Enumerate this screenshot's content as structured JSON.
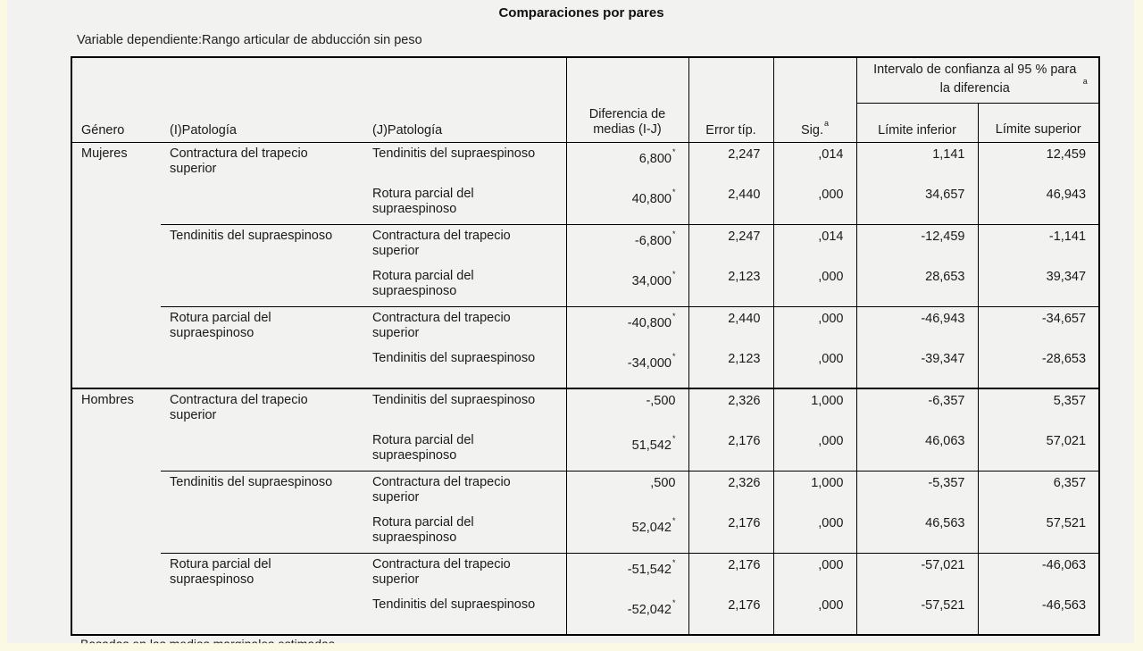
{
  "title": "Comparaciones por pares",
  "subtitle": "Variable dependiente:Rango articular de abducción sin peso",
  "headers": {
    "genero": "Género",
    "i_patologia": "(I)Patología",
    "j_patologia": "(J)Patología",
    "diferencia": "Diferencia de medias (I-J)",
    "error": "Error típ.",
    "sig": "Sig.",
    "sig_sup": "a",
    "intervalo": "Intervalo de confianza al 95 % para la diferencia",
    "intervalo_sup": "a",
    "limite_inferior": "Límite inferior",
    "limite_superior": "Límite superior"
  },
  "footnote_cut": "Basadas en las medias marginales estimadas",
  "groups": [
    {
      "genero": "Mujeres",
      "blocks": [
        {
          "i": "Contractura del trapecio superior",
          "rows": [
            {
              "j": "Tendinitis del supraespinoso",
              "diff": "6,800",
              "star": true,
              "err": "2,247",
              "sig": ",014",
              "low": "1,141",
              "high": "12,459"
            },
            {
              "j": "Rotura parcial del supraespinoso",
              "diff": "40,800",
              "star": true,
              "err": "2,440",
              "sig": ",000",
              "low": "34,657",
              "high": "46,943"
            }
          ]
        },
        {
          "i": "Tendinitis del supraespinoso",
          "rows": [
            {
              "j": "Contractura del trapecio superior",
              "diff": "-6,800",
              "star": true,
              "err": "2,247",
              "sig": ",014",
              "low": "-12,459",
              "high": "-1,141"
            },
            {
              "j": "Rotura parcial del supraespinoso",
              "diff": "34,000",
              "star": true,
              "err": "2,123",
              "sig": ",000",
              "low": "28,653",
              "high": "39,347"
            }
          ]
        },
        {
          "i": "Rotura parcial del supraespinoso",
          "rows": [
            {
              "j": "Contractura del trapecio superior",
              "diff": "-40,800",
              "star": true,
              "err": "2,440",
              "sig": ",000",
              "low": "-46,943",
              "high": "-34,657"
            },
            {
              "j": "Tendinitis del supraespinoso",
              "diff": "-34,000",
              "star": true,
              "err": "2,123",
              "sig": ",000",
              "low": "-39,347",
              "high": "-28,653"
            }
          ]
        }
      ]
    },
    {
      "genero": "Hombres",
      "blocks": [
        {
          "i": "Contractura del trapecio superior",
          "rows": [
            {
              "j": "Tendinitis del supraespinoso",
              "diff": "-,500",
              "star": false,
              "err": "2,326",
              "sig": "1,000",
              "low": "-6,357",
              "high": "5,357"
            },
            {
              "j": "Rotura parcial del supraespinoso",
              "diff": "51,542",
              "star": true,
              "err": "2,176",
              "sig": ",000",
              "low": "46,063",
              "high": "57,021"
            }
          ]
        },
        {
          "i": "Tendinitis del supraespinoso",
          "rows": [
            {
              "j": "Contractura del trapecio superior",
              "diff": ",500",
              "star": false,
              "err": "2,326",
              "sig": "1,000",
              "low": "-5,357",
              "high": "6,357"
            },
            {
              "j": "Rotura parcial del supraespinoso",
              "diff": "52,042",
              "star": true,
              "err": "2,176",
              "sig": ",000",
              "low": "46,563",
              "high": "57,521"
            }
          ]
        },
        {
          "i": "Rotura parcial del supraespinoso",
          "rows": [
            {
              "j": "Contractura del trapecio superior",
              "diff": "-51,542",
              "star": true,
              "err": "2,176",
              "sig": ",000",
              "low": "-57,021",
              "high": "-46,063"
            },
            {
              "j": "Tendinitis del supraespinoso",
              "diff": "-52,042",
              "star": true,
              "err": "2,176",
              "sig": ",000",
              "low": "-57,521",
              "high": "-46,563"
            }
          ]
        }
      ]
    }
  ]
}
